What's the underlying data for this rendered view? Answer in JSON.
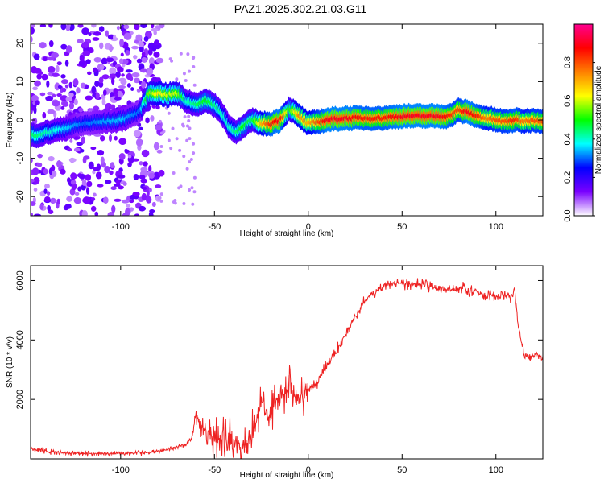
{
  "title": "PAZ1.2025.302.21.03.G11",
  "chart_data": [
    {
      "type": "heatmap",
      "xlabel": "Height of straight line (km)",
      "ylabel": "Frequency (Hz)",
      "xlim": [
        -148,
        125
      ],
      "ylim": [
        -25,
        25
      ],
      "xticks": [
        -100,
        -50,
        0,
        50,
        100
      ],
      "xtick_labels": [
        "-100",
        "-50",
        "0",
        "50",
        "100"
      ],
      "yticks": [
        -20,
        -10,
        0,
        10,
        20
      ],
      "ytick_labels": [
        "-20",
        "-10",
        "0",
        "10",
        "20"
      ],
      "grid": false,
      "colorbar": {
        "label": "Normalized spectral amplitude",
        "range": [
          0,
          1
        ],
        "ticks": [
          0.0,
          0.2,
          0.4,
          0.6,
          0.8
        ],
        "tick_labels": [
          "0.0",
          "0.2",
          "0.4",
          "0.6",
          "0.8"
        ],
        "colors": [
          "#ffffff",
          "#7a00ff",
          "#0000ff",
          "#00ffff",
          "#00ff00",
          "#ffff00",
          "#ff8000",
          "#ff0000",
          "#ff0090"
        ]
      },
      "ridge": {
        "x": [
          -145,
          -120,
          -100,
          -90,
          -85,
          -80,
          -75,
          -70,
          -65,
          -60,
          -55,
          -50,
          -45,
          -42,
          -38,
          -35,
          -30,
          -25,
          -20,
          -15,
          -10,
          -5,
          0,
          10,
          20,
          30,
          40,
          50,
          60,
          70,
          75,
          80,
          85,
          90,
          95,
          100,
          105,
          110,
          115,
          120,
          125
        ],
        "y": [
          -4,
          -1,
          0,
          2,
          7,
          7,
          6.5,
          7,
          5,
          4,
          5,
          4,
          1,
          -2,
          -3,
          -2,
          0,
          -1,
          -1,
          0,
          3,
          1,
          -1,
          0,
          0.5,
          0.5,
          0.5,
          1,
          1,
          1,
          1,
          2.5,
          2,
          1,
          0.5,
          0,
          -0.5,
          0,
          -0.3,
          0,
          -0.3
        ],
        "amplitude": [
          0.45,
          0.3,
          0.35,
          0.3,
          0.55,
          0.65,
          0.6,
          0.6,
          0.4,
          0.45,
          0.5,
          0.45,
          0.4,
          0.4,
          0.45,
          0.5,
          0.45,
          0.7,
          0.85,
          0.9,
          0.5,
          0.75,
          0.7,
          0.9,
          0.9,
          0.85,
          0.85,
          0.9,
          0.9,
          0.9,
          0.85,
          0.8,
          0.9,
          0.85,
          0.75,
          0.8,
          0.8,
          0.85,
          0.75,
          0.8,
          0.8
        ]
      }
    },
    {
      "type": "line",
      "xlabel": "Height of straight line (km)",
      "ylabel": "SNR (10 * v/v)",
      "xlim": [
        -148,
        125
      ],
      "ylim": [
        0,
        6500
      ],
      "xticks": [
        -100,
        -50,
        0,
        50,
        100
      ],
      "xtick_labels": [
        "-100",
        "-50",
        "0",
        "50",
        "100"
      ],
      "yticks": [
        2000,
        4000,
        6000
      ],
      "ytick_labels": [
        "2000",
        "4000",
        "6000"
      ],
      "grid": false,
      "line_color": "#ee2222",
      "series": [
        {
          "name": "SNR",
          "x": [
            -148,
            -140,
            -130,
            -120,
            -110,
            -100,
            -90,
            -80,
            -75,
            -70,
            -65,
            -62,
            -60,
            -58,
            -55,
            -52,
            -50,
            -45,
            -40,
            -35,
            -30,
            -28,
            -25,
            -22,
            -20,
            -18,
            -15,
            -12,
            -10,
            -7,
            -5,
            -3,
            0,
            5,
            10,
            15,
            20,
            25,
            30,
            35,
            40,
            45,
            50,
            55,
            60,
            65,
            70,
            75,
            80,
            83,
            85,
            90,
            95,
            100,
            105,
            108,
            110,
            112,
            115,
            120,
            125
          ],
          "y": [
            350,
            250,
            200,
            180,
            180,
            180,
            200,
            250,
            300,
            400,
            500,
            700,
            1500,
            1200,
            900,
            800,
            700,
            600,
            500,
            500,
            800,
            1200,
            2000,
            1500,
            1500,
            2000,
            2200,
            2300,
            2500,
            2200,
            2000,
            2000,
            2300,
            2600,
            3200,
            3600,
            4200,
            4800,
            5300,
            5600,
            5800,
            5900,
            5900,
            5850,
            5900,
            5800,
            5700,
            5700,
            5700,
            5800,
            5600,
            5600,
            5500,
            5500,
            5500,
            5400,
            5700,
            4400,
            3500,
            3500,
            3450
          ]
        }
      ]
    }
  ]
}
